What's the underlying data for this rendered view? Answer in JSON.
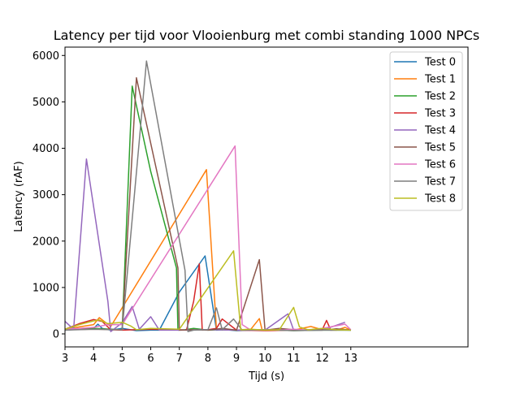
{
  "chart_data": {
    "type": "line",
    "title": "Latency per tijd voor Vlooienburg met  combi standing 1000 NPCs",
    "xlabel": "Tijd (s)",
    "ylabel": "Latency (rAF)",
    "xlim": [
      3,
      17.1
    ],
    "ylim": [
      -280,
      6180
    ],
    "xticks": [
      3,
      4,
      5,
      6,
      7,
      8,
      9,
      10,
      11,
      12,
      13
    ],
    "yticks": [
      0,
      1000,
      2000,
      3000,
      4000,
      5000,
      6000
    ],
    "xtick_labels": [
      "3",
      "4",
      "5",
      "6",
      "7",
      "8",
      "9",
      "10",
      "11",
      "12",
      "13"
    ],
    "ytick_labels": [
      "0",
      "1000",
      "2000",
      "3000",
      "4000",
      "5000",
      "6000"
    ],
    "grid": false,
    "legend_position": "top-right",
    "series": [
      {
        "name": "Test 0",
        "color": "#1f77b4",
        "x": [
          3.0,
          3.5,
          4.0,
          4.15,
          4.3,
          4.6,
          5.0,
          5.5,
          6.0,
          6.3,
          7.0,
          7.9,
          8.3,
          8.6,
          9.0,
          10.0,
          11.0,
          12.0,
          13.0
        ],
        "y": [
          80,
          100,
          120,
          210,
          120,
          80,
          120,
          70,
          80,
          80,
          900,
          1680,
          80,
          90,
          70,
          90,
          80,
          90,
          80
        ]
      },
      {
        "name": "Test 1",
        "color": "#ff7f0e",
        "x": [
          3.0,
          3.5,
          4.0,
          4.2,
          4.6,
          7.95,
          8.3,
          8.5,
          9.0,
          9.5,
          9.8,
          9.9,
          10.5,
          11.0,
          11.6,
          12.0,
          12.5,
          12.8,
          13.0
        ],
        "y": [
          100,
          150,
          200,
          350,
          160,
          3540,
          100,
          90,
          80,
          100,
          330,
          80,
          90,
          80,
          160,
          90,
          80,
          140,
          80
        ]
      },
      {
        "name": "Test 2",
        "color": "#2ca02c",
        "x": [
          3.0,
          4.0,
          5.0,
          5.35,
          6.0,
          6.9,
          6.95,
          7.2,
          7.5,
          8.0,
          8.5,
          9.0,
          10.0,
          11.0,
          12.0,
          13.0
        ],
        "y": [
          100,
          120,
          90,
          5340,
          3500,
          1420,
          80,
          90,
          120,
          80,
          90,
          80,
          90,
          70,
          80,
          80
        ]
      },
      {
        "name": "Test 3",
        "color": "#d62728",
        "x": [
          3.0,
          3.5,
          4.0,
          4.3,
          4.6,
          5.0,
          6.0,
          7.0,
          7.25,
          7.5,
          7.7,
          7.8,
          8.0,
          8.3,
          8.5,
          9.0,
          10.0,
          11.0,
          12.0,
          12.15,
          12.3,
          13.0
        ],
        "y": [
          100,
          220,
          310,
          270,
          90,
          80,
          100,
          90,
          80,
          700,
          1510,
          80,
          90,
          120,
          320,
          80,
          70,
          80,
          90,
          290,
          80,
          90
        ]
      },
      {
        "name": "Test 4",
        "color": "#9467bd",
        "x": [
          3.0,
          3.3,
          3.75,
          4.5,
          4.6,
          5.0,
          5.35,
          5.6,
          6.0,
          6.3,
          7.0,
          8.0,
          9.0,
          10.0,
          10.8,
          11.0,
          12.0,
          12.8
        ],
        "y": [
          270,
          100,
          3770,
          700,
          50,
          240,
          590,
          100,
          370,
          80,
          80,
          90,
          80,
          80,
          430,
          80,
          80,
          250
        ]
      },
      {
        "name": "Test 5",
        "color": "#8c564b",
        "x": [
          3.0,
          4.0,
          5.0,
          5.5,
          6.95,
          7.0,
          7.5,
          8.0,
          8.5,
          9.0,
          9.8,
          10.0,
          10.5,
          11.0,
          12.0,
          12.5,
          13.0
        ],
        "y": [
          90,
          100,
          90,
          5520,
          1420,
          80,
          90,
          80,
          120,
          80,
          1600,
          80,
          120,
          90,
          80,
          110,
          80
        ]
      },
      {
        "name": "Test 6",
        "color": "#e377c2",
        "x": [
          3.0,
          3.5,
          4.0,
          4.5,
          5.0,
          8.95,
          9.2,
          9.5,
          10.0,
          10.5,
          11.0,
          11.5,
          12.0,
          12.8,
          13.0
        ],
        "y": [
          100,
          120,
          140,
          200,
          200,
          4050,
          200,
          80,
          90,
          80,
          100,
          80,
          120,
          210,
          90
        ]
      },
      {
        "name": "Test 7",
        "color": "#7f7f7f",
        "x": [
          3.0,
          4.0,
          5.0,
          5.85,
          7.2,
          7.3,
          7.5,
          8.0,
          8.3,
          8.5,
          8.9,
          9.2,
          10.0,
          11.0,
          12.0,
          13.0
        ],
        "y": [
          80,
          100,
          90,
          5880,
          1370,
          50,
          80,
          90,
          560,
          90,
          320,
          80,
          90,
          70,
          80,
          80
        ]
      },
      {
        "name": "Test 8",
        "color": "#bcbd22",
        "x": [
          3.0,
          3.5,
          4.0,
          4.2,
          4.5,
          5.0,
          5.3,
          5.5,
          6.0,
          7.0,
          8.9,
          9.15,
          9.5,
          10.0,
          10.5,
          11.0,
          11.2,
          11.5,
          12.0,
          12.5,
          13.0
        ],
        "y": [
          100,
          200,
          280,
          300,
          220,
          250,
          170,
          90,
          120,
          100,
          1790,
          90,
          100,
          80,
          90,
          570,
          150,
          90,
          120,
          90,
          80
        ]
      }
    ]
  }
}
